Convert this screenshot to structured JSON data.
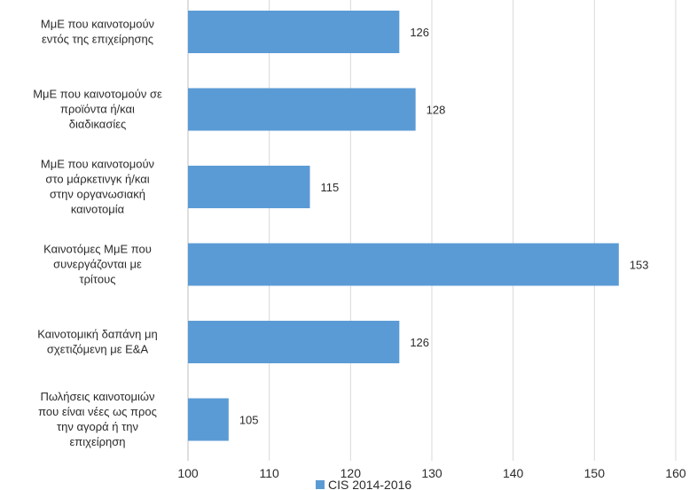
{
  "chart_data": {
    "type": "bar",
    "orientation": "horizontal",
    "categories": [
      "ΜμΕ που καινοτομούν εντός της επιχείρησης",
      "ΜμΕ που καινοτομούν σε προϊόντα ή/και διαδικασίες",
      "ΜμΕ που καινοτομούν στο μάρκετινγκ ή/και στην οργανωσιακή καινοτομία",
      "Καινοτόμες ΜμΕ που συνεργάζονται με τρίτους",
      "Καινοτομική δαπάνη μη σχετιζόμενη με Ε&Α",
      "Πωλήσεις καινοτομιών που είναι νέες ως προς την αγορά ή την επιχείρηση"
    ],
    "category_label_lines": [
      [
        "ΜμΕ που καινοτομούν",
        "εντός της επιχείρησης"
      ],
      [
        "ΜμΕ που καινοτομούν σε",
        "προϊόντα ή/και",
        "διαδικασίες"
      ],
      [
        "ΜμΕ που καινοτομούν",
        "στο μάρκετινγκ ή/και",
        "στην οργανωσιακή",
        "καινοτομία"
      ],
      [
        "Καινοτόμες ΜμΕ που",
        "συνεργάζονται με",
        "τρίτους"
      ],
      [
        "Καινοτομική δαπάνη μη",
        "σχετιζόμενη με Ε&Α"
      ],
      [
        "Πωλήσεις καινοτομιών",
        "που είναι νέες ως προς",
        "την αγορά ή την",
        "επιχείρηση"
      ]
    ],
    "series": [
      {
        "name": "CIS 2014-2016",
        "values": [
          126,
          128,
          115,
          153,
          126,
          105
        ],
        "color": "#5b9bd5"
      }
    ],
    "data_labels": [
      "126",
      "128",
      "115",
      "153",
      "126",
      "105"
    ],
    "xlim": [
      100,
      160
    ],
    "xticks": [
      "100",
      "110",
      "120",
      "130",
      "140",
      "150",
      "160"
    ],
    "grid": true,
    "legend_position": "bottom"
  }
}
